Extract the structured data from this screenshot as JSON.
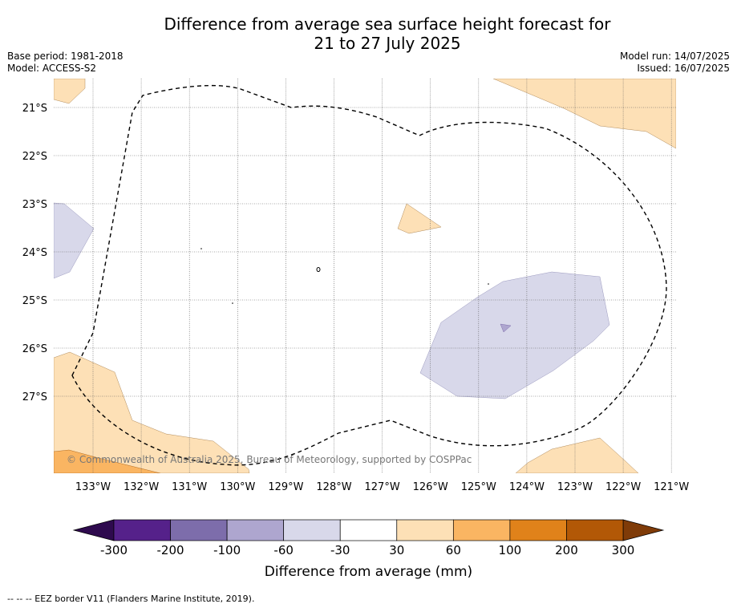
{
  "title_line1": "Difference from average sea surface height forecast for",
  "title_line2": "21 to 27 July 2025",
  "base_period": "Base period: 1981-2018",
  "model": "Model: ACCESS-S2",
  "model_run": "Model run: 14/07/2025",
  "issued": "Issued: 16/07/2025",
  "lat_labels": [
    "21°S",
    "22°S",
    "23°S",
    "24°S",
    "25°S",
    "26°S",
    "27°S"
  ],
  "lon_labels": [
    "133°W",
    "132°W",
    "131°W",
    "130°W",
    "129°W",
    "128°W",
    "127°W",
    "126°W",
    "125°W",
    "124°W",
    "123°W",
    "122°W",
    "121°W"
  ],
  "copyright": "© Commonwealth of Australia 2025, Bureau of Meteorology, supported by COSPPac",
  "colorbar": {
    "title": "Difference from average (mm)",
    "ticks": [
      "-300",
      "-200",
      "-100",
      "-60",
      "-30",
      "30",
      "60",
      "100",
      "200",
      "300"
    ],
    "colors": [
      "#55218a",
      "#7d6dab",
      "#aea6cf",
      "#d8d8ea",
      "#ffffff",
      "#fde0b6",
      "#fab562",
      "#e0821a",
      "#b25806"
    ],
    "under_color": "#2e0a4e",
    "over_color": "#7f3b08"
  },
  "footer": "-- -- -- EEZ border V11 (Flanders Marine Institute, 2019)."
}
